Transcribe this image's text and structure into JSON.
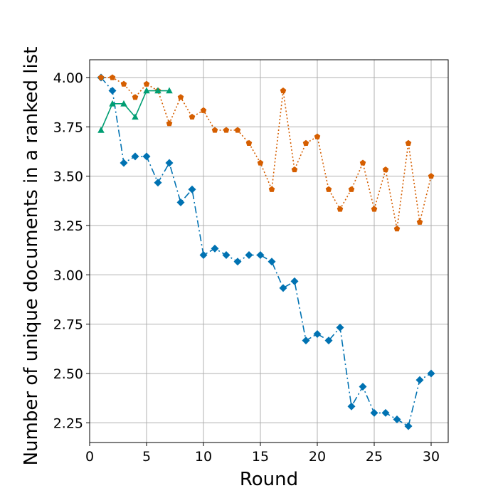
{
  "chart_data": {
    "type": "line",
    "title": "",
    "xlabel": "Round",
    "ylabel": "Number of unique documents in a ranked list",
    "xlim": [
      0.0,
      31.5
    ],
    "ylim": [
      2.15,
      4.09
    ],
    "xticks": [
      0,
      5,
      10,
      15,
      20,
      25,
      30
    ],
    "yticks": [
      2.25,
      2.5,
      2.75,
      3.0,
      3.25,
      3.5,
      3.75,
      4.0
    ],
    "ytick_labels": [
      "2.25",
      "2.50",
      "2.75",
      "3.00",
      "3.25",
      "3.50",
      "3.75",
      "4.00"
    ],
    "grid": true,
    "legend": "none",
    "series": [
      {
        "color": "#0072B2",
        "linestyle": "dashdot",
        "marker": "diamond",
        "x": [
          1,
          2,
          3,
          4,
          5,
          6,
          7,
          8,
          9,
          10,
          11,
          12,
          13,
          14,
          15,
          16,
          17,
          18,
          19,
          20,
          21,
          22,
          23,
          24,
          25,
          26,
          27,
          28,
          29,
          30
        ],
        "y": [
          4.0,
          3.933,
          3.567,
          3.6,
          3.6,
          3.467,
          3.567,
          3.367,
          3.433,
          3.1,
          3.133,
          3.1,
          3.067,
          3.1,
          3.1,
          3.067,
          2.933,
          2.967,
          2.667,
          2.7,
          2.667,
          2.733,
          2.333,
          2.433,
          2.3,
          2.3,
          2.267,
          2.233,
          2.467,
          2.5
        ]
      },
      {
        "color": "#D55E00",
        "linestyle": "dotted",
        "marker": "pentagon",
        "x": [
          1,
          2,
          3,
          4,
          5,
          6,
          7,
          8,
          9,
          10,
          11,
          12,
          13,
          14,
          15,
          16,
          17,
          18,
          19,
          20,
          21,
          22,
          23,
          24,
          25,
          26,
          27,
          28,
          29,
          30
        ],
        "y": [
          4.0,
          4.0,
          3.967,
          3.9,
          3.967,
          3.933,
          3.767,
          3.9,
          3.8,
          3.833,
          3.733,
          3.733,
          3.733,
          3.667,
          3.567,
          3.433,
          3.933,
          3.533,
          3.667,
          3.7,
          3.433,
          3.333,
          3.433,
          3.567,
          3.333,
          3.533,
          3.233,
          3.667,
          3.267,
          3.5
        ]
      },
      {
        "color": "#009E73",
        "linestyle": "solid",
        "marker": "triangle",
        "x": [
          1,
          2,
          3,
          4,
          5,
          6,
          7
        ],
        "y": [
          3.733,
          3.867,
          3.867,
          3.8,
          3.933,
          3.933,
          3.933
        ]
      }
    ]
  }
}
